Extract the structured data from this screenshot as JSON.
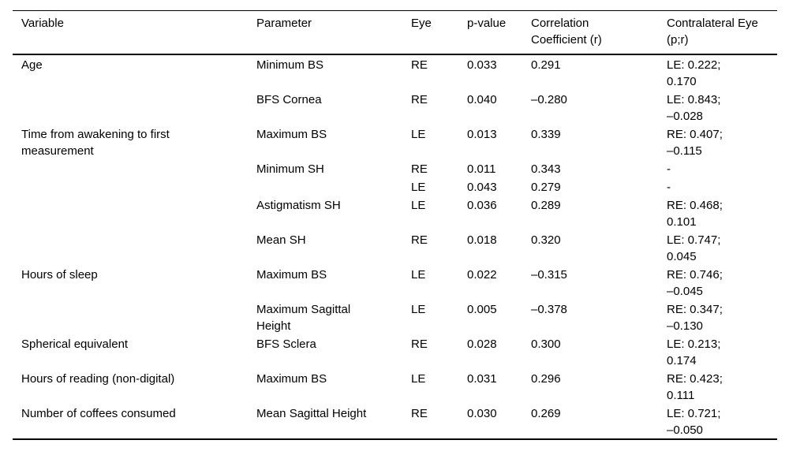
{
  "figure": {
    "background_color": "#ffffff",
    "rule_color": "#000000",
    "text_color": "#000000"
  },
  "table": {
    "columns": [
      {
        "label": "Variable"
      },
      {
        "label": "Parameter"
      },
      {
        "label": "Eye"
      },
      {
        "label": "p-value"
      },
      {
        "label": "Correlation\nCoefficient (r)"
      },
      {
        "label": "Contralateral Eye\n(p;r)"
      }
    ],
    "rows": [
      [
        "Age",
        "Minimum BS",
        "RE",
        "0.033",
        "0.291",
        "LE: 0.222;\n0.170"
      ],
      [
        "",
        "BFS Cornea",
        "RE",
        "0.040",
        "–0.280",
        "LE: 0.843;\n–0.028"
      ],
      [
        "Time from awakening to first\nmeasurement",
        "Maximum BS",
        "LE",
        "0.013",
        "0.339",
        "RE: 0.407;\n–0.115"
      ],
      [
        "",
        "Minimum SH",
        "RE",
        "0.011",
        "0.343",
        "-"
      ],
      [
        "",
        "",
        "LE",
        "0.043",
        "0.279",
        "-"
      ],
      [
        "",
        "Astigmatism SH",
        "LE",
        "0.036",
        "0.289",
        "RE: 0.468;\n0.101"
      ],
      [
        "",
        "Mean SH",
        "RE",
        "0.018",
        "0.320",
        "LE: 0.747;\n0.045"
      ],
      [
        "Hours of sleep",
        "Maximum BS",
        "LE",
        "0.022",
        "–0.315",
        "RE: 0.746;\n–0.045"
      ],
      [
        "",
        "Maximum Sagittal\nHeight",
        "LE",
        "0.005",
        "–0.378",
        "RE: 0.347;\n–0.130"
      ],
      [
        "Spherical equivalent",
        "BFS Sclera",
        "RE",
        "0.028",
        "0.300",
        "LE: 0.213;\n0.174"
      ],
      [
        "Hours of reading (non-digital)",
        "Maximum BS",
        "LE",
        "0.031",
        "0.296",
        "RE: 0.423;\n0.111"
      ],
      [
        "Number of coffees consumed",
        "Mean Sagittal Height",
        "RE",
        "0.030",
        "0.269",
        "LE: 0.721;\n–0.050"
      ]
    ]
  }
}
